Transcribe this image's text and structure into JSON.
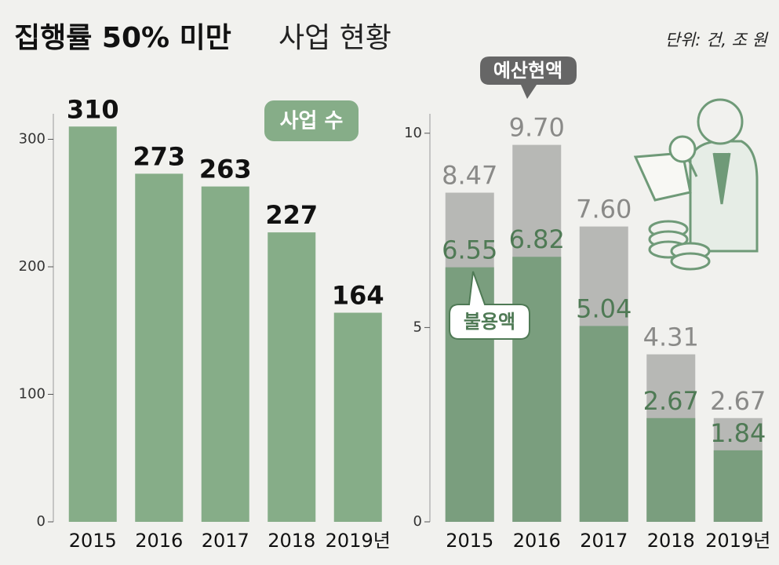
{
  "header": {
    "title_main": "집행률 50% 미만",
    "title_rest": "사업 현황",
    "unit": "단위: 건, 조 원"
  },
  "chart_data": [
    {
      "type": "bar",
      "legend": "사업 수",
      "categories": [
        "2015",
        "2016",
        "2017",
        "2018",
        "2019년"
      ],
      "series": [
        {
          "name": "사업 수",
          "color": "#86ad88",
          "values": [
            310,
            273,
            263,
            227,
            164
          ],
          "value_labels": [
            "310",
            "273",
            "263",
            "227",
            "164"
          ]
        }
      ],
      "ylim": [
        0,
        320
      ],
      "yticks": [
        0,
        100,
        200,
        300
      ]
    },
    {
      "type": "overlap-bar",
      "categories": [
        "2015",
        "2016",
        "2017",
        "2018",
        "2019년"
      ],
      "series": [
        {
          "name": "예산현액",
          "color": "#b7b8b5",
          "label_color": "#8a8a88",
          "values": [
            8.47,
            9.7,
            7.6,
            4.31,
            2.67
          ],
          "value_labels": [
            "8.47",
            "9.70",
            "7.60",
            "4.31",
            "2.67"
          ]
        },
        {
          "name": "불용액",
          "color": "#7a9e7e",
          "label_color": "#4f7a55",
          "values": [
            6.55,
            6.82,
            5.04,
            2.67,
            1.84
          ],
          "value_labels": [
            "6.55",
            "6.82",
            "5.04",
            "2.67",
            "1.84"
          ]
        }
      ],
      "ylim": [
        0,
        10.5
      ],
      "yticks": [
        0,
        5,
        10
      ]
    }
  ]
}
